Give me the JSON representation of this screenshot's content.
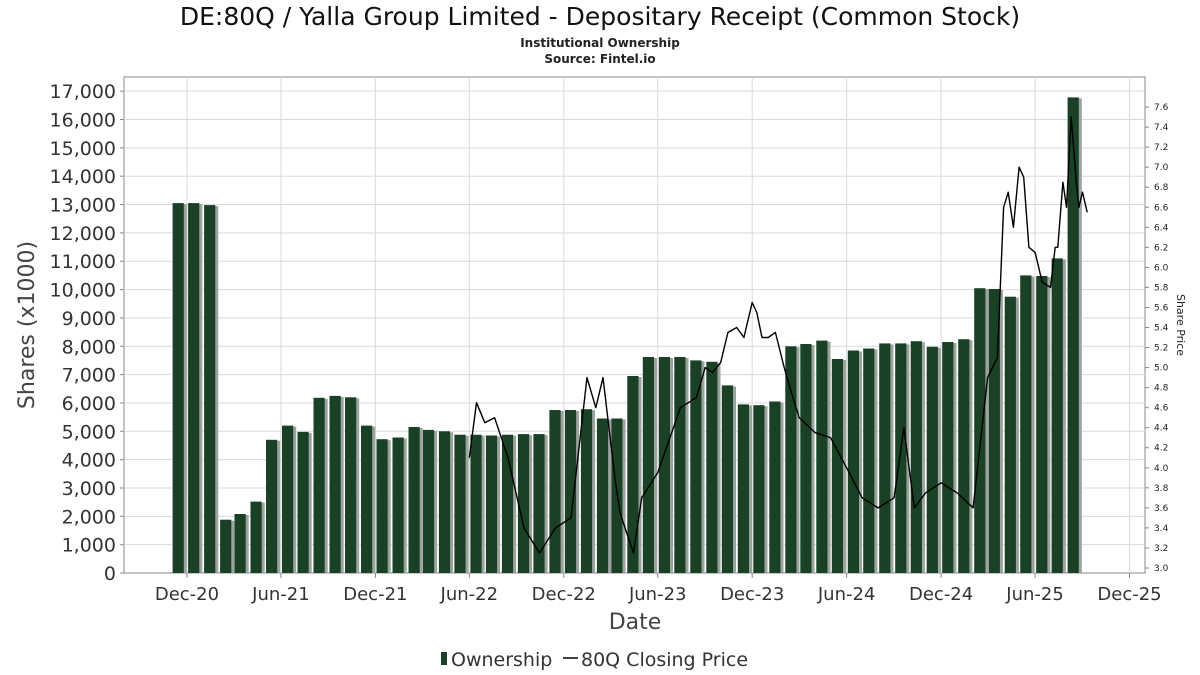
{
  "title": "DE:80Q / Yalla Group Limited - Depositary Receipt (Common Stock)",
  "subtitle": "Institutional Ownership",
  "source": "Source: Fintel.io",
  "colors": {
    "bar": "#1a4126",
    "bar_shade": "#9aa39c",
    "line": "#000000",
    "grid": "#d9d9d9"
  },
  "chart_data": {
    "type": "bar",
    "xlabel": "Date",
    "ylabel": "Shares (x1000)",
    "y2label": "Share Price",
    "ylim": [
      0,
      17500
    ],
    "y2lim": [
      2.95,
      7.9
    ],
    "xlim": [
      "2020-08-01",
      "2025-12-31"
    ],
    "x_ticks": [
      {
        "date": "2020-12-01",
        "label": "Dec-20"
      },
      {
        "date": "2021-06-01",
        "label": "Jun-21"
      },
      {
        "date": "2021-12-01",
        "label": "Dec-21"
      },
      {
        "date": "2022-06-01",
        "label": "Jun-22"
      },
      {
        "date": "2022-12-01",
        "label": "Dec-22"
      },
      {
        "date": "2023-06-01",
        "label": "Jun-23"
      },
      {
        "date": "2023-12-01",
        "label": "Dec-23"
      },
      {
        "date": "2024-06-01",
        "label": "Jun-24"
      },
      {
        "date": "2024-12-01",
        "label": "Dec-24"
      },
      {
        "date": "2025-06-01",
        "label": "Jun-25"
      },
      {
        "date": "2025-12-01",
        "label": "Dec-25"
      }
    ],
    "y_ticks": [
      {
        "value": 0,
        "label": "0"
      },
      {
        "value": 1000,
        "label": "1,000"
      },
      {
        "value": 2000,
        "label": "2,000"
      },
      {
        "value": 3000,
        "label": "3,000"
      },
      {
        "value": 4000,
        "label": "4,000"
      },
      {
        "value": 5000,
        "label": "5,000"
      },
      {
        "value": 6000,
        "label": "6,000"
      },
      {
        "value": 7000,
        "label": "7,000"
      },
      {
        "value": 8000,
        "label": "8,000"
      },
      {
        "value": 9000,
        "label": "9,000"
      },
      {
        "value": 10000,
        "label": "10,000"
      },
      {
        "value": 11000,
        "label": "11,000"
      },
      {
        "value": 12000,
        "label": "12,000"
      },
      {
        "value": 13000,
        "label": "13,000"
      },
      {
        "value": 14000,
        "label": "14,000"
      },
      {
        "value": 15000,
        "label": "15,000"
      },
      {
        "value": 16000,
        "label": "16,000"
      },
      {
        "value": 17000,
        "label": "17,000"
      }
    ],
    "y2_ticks": [
      {
        "value": 3.0,
        "label": "3.0"
      },
      {
        "value": 3.2,
        "label": "3.2"
      },
      {
        "value": 3.4,
        "label": "3.4"
      },
      {
        "value": 3.6,
        "label": "3.6"
      },
      {
        "value": 3.8,
        "label": "3.8"
      },
      {
        "value": 4.0,
        "label": "4.0"
      },
      {
        "value": 4.2,
        "label": "4.2"
      },
      {
        "value": 4.4,
        "label": "4.4"
      },
      {
        "value": 4.6,
        "label": "4.6"
      },
      {
        "value": 4.8,
        "label": "4.8"
      },
      {
        "value": 5.0,
        "label": "5.0"
      },
      {
        "value": 5.2,
        "label": "5.2"
      },
      {
        "value": 5.4,
        "label": "5.4"
      },
      {
        "value": 5.6,
        "label": "5.6"
      },
      {
        "value": 5.8,
        "label": "5.8"
      },
      {
        "value": 6.0,
        "label": "6.0"
      },
      {
        "value": 6.2,
        "label": "6.2"
      },
      {
        "value": 6.4,
        "label": "6.4"
      },
      {
        "value": 6.6,
        "label": "6.6"
      },
      {
        "value": 6.8,
        "label": "6.8"
      },
      {
        "value": 7.0,
        "label": "7.0"
      },
      {
        "value": 7.2,
        "label": "7.2"
      },
      {
        "value": 7.4,
        "label": "7.4"
      },
      {
        "value": 7.6,
        "label": "7.6"
      }
    ],
    "series": [
      {
        "name": "Ownership",
        "type": "bar",
        "data": [
          {
            "date": "2020-11-15",
            "value": 13050
          },
          {
            "date": "2020-12-15",
            "value": 13050
          },
          {
            "date": "2021-01-15",
            "value": 12980
          },
          {
            "date": "2021-02-15",
            "value": 1880
          },
          {
            "date": "2021-03-15",
            "value": 2080
          },
          {
            "date": "2021-04-15",
            "value": 2520
          },
          {
            "date": "2021-05-15",
            "value": 4700
          },
          {
            "date": "2021-06-15",
            "value": 5200
          },
          {
            "date": "2021-07-15",
            "value": 4980
          },
          {
            "date": "2021-08-15",
            "value": 6180
          },
          {
            "date": "2021-09-15",
            "value": 6250
          },
          {
            "date": "2021-10-15",
            "value": 6200
          },
          {
            "date": "2021-11-15",
            "value": 5200
          },
          {
            "date": "2021-12-15",
            "value": 4720
          },
          {
            "date": "2022-01-15",
            "value": 4780
          },
          {
            "date": "2022-02-15",
            "value": 5150
          },
          {
            "date": "2022-03-15",
            "value": 5050
          },
          {
            "date": "2022-04-15",
            "value": 5000
          },
          {
            "date": "2022-05-15",
            "value": 4880
          },
          {
            "date": "2022-06-15",
            "value": 4880
          },
          {
            "date": "2022-07-15",
            "value": 4850
          },
          {
            "date": "2022-08-15",
            "value": 4880
          },
          {
            "date": "2022-09-15",
            "value": 4900
          },
          {
            "date": "2022-10-15",
            "value": 4900
          },
          {
            "date": "2022-11-15",
            "value": 5750
          },
          {
            "date": "2022-12-15",
            "value": 5750
          },
          {
            "date": "2023-01-15",
            "value": 5780
          },
          {
            "date": "2023-02-15",
            "value": 5450
          },
          {
            "date": "2023-03-15",
            "value": 5450
          },
          {
            "date": "2023-04-15",
            "value": 6950
          },
          {
            "date": "2023-05-15",
            "value": 7620
          },
          {
            "date": "2023-06-15",
            "value": 7620
          },
          {
            "date": "2023-07-15",
            "value": 7620
          },
          {
            "date": "2023-08-15",
            "value": 7500
          },
          {
            "date": "2023-09-15",
            "value": 7450
          },
          {
            "date": "2023-10-15",
            "value": 6620
          },
          {
            "date": "2023-11-15",
            "value": 5950
          },
          {
            "date": "2023-12-15",
            "value": 5920
          },
          {
            "date": "2024-01-15",
            "value": 6050
          },
          {
            "date": "2024-02-15",
            "value": 8000
          },
          {
            "date": "2024-03-15",
            "value": 8080
          },
          {
            "date": "2024-04-15",
            "value": 8200
          },
          {
            "date": "2024-05-15",
            "value": 7550
          },
          {
            "date": "2024-06-15",
            "value": 7850
          },
          {
            "date": "2024-07-15",
            "value": 7920
          },
          {
            "date": "2024-08-15",
            "value": 8100
          },
          {
            "date": "2024-09-15",
            "value": 8100
          },
          {
            "date": "2024-10-15",
            "value": 8180
          },
          {
            "date": "2024-11-15",
            "value": 7980
          },
          {
            "date": "2024-12-15",
            "value": 8150
          },
          {
            "date": "2025-01-15",
            "value": 8250
          },
          {
            "date": "2025-02-15",
            "value": 10050
          },
          {
            "date": "2025-03-15",
            "value": 10020
          },
          {
            "date": "2025-04-15",
            "value": 9750
          },
          {
            "date": "2025-05-15",
            "value": 10500
          },
          {
            "date": "2025-06-15",
            "value": 10480
          },
          {
            "date": "2025-07-15",
            "value": 11100
          },
          {
            "date": "2025-08-15",
            "value": 16780
          }
        ]
      },
      {
        "name": "80Q Closing Price",
        "type": "line",
        "data": [
          {
            "date": "2022-06-01",
            "value": 4.1
          },
          {
            "date": "2022-06-15",
            "value": 4.65
          },
          {
            "date": "2022-07-01",
            "value": 4.45
          },
          {
            "date": "2022-07-20",
            "value": 4.5
          },
          {
            "date": "2022-08-15",
            "value": 4.1
          },
          {
            "date": "2022-09-15",
            "value": 3.4
          },
          {
            "date": "2022-10-15",
            "value": 3.15
          },
          {
            "date": "2022-11-15",
            "value": 3.4
          },
          {
            "date": "2022-12-15",
            "value": 3.5
          },
          {
            "date": "2023-01-15",
            "value": 4.9
          },
          {
            "date": "2023-02-01",
            "value": 4.6
          },
          {
            "date": "2023-02-15",
            "value": 4.9
          },
          {
            "date": "2023-03-10",
            "value": 3.9
          },
          {
            "date": "2023-03-20",
            "value": 3.55
          },
          {
            "date": "2023-04-15",
            "value": 3.15
          },
          {
            "date": "2023-05-01",
            "value": 3.7
          },
          {
            "date": "2023-06-01",
            "value": 3.95
          },
          {
            "date": "2023-07-15",
            "value": 4.6
          },
          {
            "date": "2023-08-15",
            "value": 4.7
          },
          {
            "date": "2023-09-01",
            "value": 5.0
          },
          {
            "date": "2023-09-15",
            "value": 4.95
          },
          {
            "date": "2023-10-01",
            "value": 5.05
          },
          {
            "date": "2023-10-15",
            "value": 5.35
          },
          {
            "date": "2023-11-01",
            "value": 5.4
          },
          {
            "date": "2023-11-15",
            "value": 5.3
          },
          {
            "date": "2023-12-01",
            "value": 5.65
          },
          {
            "date": "2023-12-10",
            "value": 5.55
          },
          {
            "date": "2023-12-20",
            "value": 5.3
          },
          {
            "date": "2024-01-01",
            "value": 5.3
          },
          {
            "date": "2024-01-15",
            "value": 5.35
          },
          {
            "date": "2024-02-01",
            "value": 5.0
          },
          {
            "date": "2024-02-15",
            "value": 4.75
          },
          {
            "date": "2024-03-01",
            "value": 4.5
          },
          {
            "date": "2024-04-01",
            "value": 4.35
          },
          {
            "date": "2024-05-01",
            "value": 4.3
          },
          {
            "date": "2024-06-01",
            "value": 4.0
          },
          {
            "date": "2024-07-01",
            "value": 3.7
          },
          {
            "date": "2024-08-01",
            "value": 3.6
          },
          {
            "date": "2024-09-01",
            "value": 3.7
          },
          {
            "date": "2024-09-20",
            "value": 4.4
          },
          {
            "date": "2024-10-10",
            "value": 3.6
          },
          {
            "date": "2024-11-01",
            "value": 3.75
          },
          {
            "date": "2024-12-01",
            "value": 3.85
          },
          {
            "date": "2025-01-01",
            "value": 3.75
          },
          {
            "date": "2025-02-01",
            "value": 3.6
          },
          {
            "date": "2025-03-01",
            "value": 4.9
          },
          {
            "date": "2025-03-20",
            "value": 5.1
          },
          {
            "date": "2025-04-01",
            "value": 6.6
          },
          {
            "date": "2025-04-10",
            "value": 6.75
          },
          {
            "date": "2025-04-20",
            "value": 6.4
          },
          {
            "date": "2025-05-01",
            "value": 7.0
          },
          {
            "date": "2025-05-10",
            "value": 6.9
          },
          {
            "date": "2025-05-20",
            "value": 6.2
          },
          {
            "date": "2025-06-01",
            "value": 6.15
          },
          {
            "date": "2025-06-15",
            "value": 5.85
          },
          {
            "date": "2025-07-01",
            "value": 5.8
          },
          {
            "date": "2025-07-10",
            "value": 6.2
          },
          {
            "date": "2025-07-15",
            "value": 6.2
          },
          {
            "date": "2025-07-25",
            "value": 6.85
          },
          {
            "date": "2025-08-01",
            "value": 6.6
          },
          {
            "date": "2025-08-10",
            "value": 7.5
          },
          {
            "date": "2025-08-20",
            "value": 6.85
          },
          {
            "date": "2025-08-25",
            "value": 6.6
          },
          {
            "date": "2025-09-01",
            "value": 6.75
          },
          {
            "date": "2025-09-10",
            "value": 6.55
          }
        ]
      }
    ],
    "legend": {
      "position": "bottom-center",
      "items": [
        "Ownership",
        "80Q Closing Price"
      ]
    }
  }
}
